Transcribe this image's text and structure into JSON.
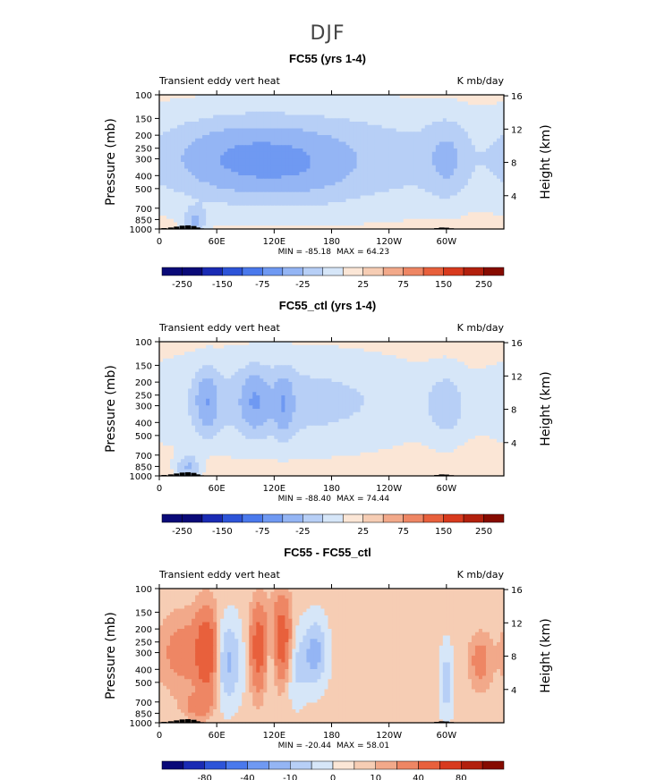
{
  "figure": {
    "supertitle": "DJF"
  },
  "chart_data": [
    {
      "type": "heatmap",
      "title": "FC55 (yrs 1-4)",
      "left_subtitle": "Transient eddy vert heat",
      "right_subtitle": "K mb/day",
      "xlabel": "",
      "ylabel": "Pressure (mb)",
      "ylabel_right": "Height (km)",
      "x_ticks": [
        "0",
        "60E",
        "120E",
        "180",
        "120W",
        "60W"
      ],
      "y_ticks": [
        "100",
        "150",
        "200",
        "250",
        "300",
        "400",
        "500",
        "700",
        "850",
        "1000"
      ],
      "y_ticks_right": [
        "16",
        "12",
        "8",
        "4"
      ],
      "xlim": [
        0,
        360
      ],
      "ylim": [
        1000,
        100
      ],
      "y_scale": "log",
      "min_label": "MIN = -85.18",
      "max_label": "MAX = 64.23",
      "min": -85.18,
      "max": 64.23,
      "colorbar_labels": [
        "-250",
        "-150",
        "-75",
        "-25",
        "25",
        "75",
        "150",
        "250"
      ],
      "levels": [
        -250,
        -200,
        -150,
        -100,
        -75,
        -50,
        -25,
        -10,
        10,
        25,
        50,
        75,
        100,
        150,
        200,
        250
      ],
      "background_value": 5,
      "features": [
        {
          "lon": 150,
          "plev": 300,
          "wlon": 160,
          "wlogp": 0.28,
          "value": -24
        },
        {
          "lon": 80,
          "plev": 300,
          "wlon": 40,
          "wlogp": 0.16,
          "value": -32
        },
        {
          "lon": 140,
          "plev": 320,
          "wlon": 40,
          "wlogp": 0.16,
          "value": -30
        },
        {
          "lon": 38,
          "plev": 860,
          "wlon": 8,
          "wlogp": 0.06,
          "value": -30
        },
        {
          "lon": 300,
          "plev": 300,
          "wlon": 14,
          "wlogp": 0.18,
          "value": -22
        }
      ]
    },
    {
      "type": "heatmap",
      "title": "FC55_ctl (yrs 1-4)",
      "left_subtitle": "Transient eddy vert heat",
      "right_subtitle": "K mb/day",
      "xlabel": "",
      "ylabel": "Pressure (mb)",
      "ylabel_right": "Height (km)",
      "x_ticks": [
        "0",
        "60E",
        "120E",
        "180",
        "120W",
        "60W"
      ],
      "y_ticks": [
        "100",
        "150",
        "200",
        "250",
        "300",
        "400",
        "500",
        "700",
        "850",
        "1000"
      ],
      "y_ticks_right": [
        "16",
        "12",
        "8",
        "4"
      ],
      "xlim": [
        0,
        360
      ],
      "ylim": [
        1000,
        100
      ],
      "y_scale": "log",
      "min_label": "MIN = -88.40",
      "max_label": "MAX = 74.44",
      "min": -88.4,
      "max": 74.44,
      "colorbar_labels": [
        "-250",
        "-150",
        "-75",
        "-25",
        "25",
        "75",
        "150",
        "250"
      ],
      "levels": [
        -250,
        -200,
        -150,
        -100,
        -75,
        -50,
        -25,
        -10,
        10,
        25,
        50,
        75,
        100,
        150,
        200,
        250
      ],
      "background_value": 5,
      "features": [
        {
          "lon": 130,
          "plev": 280,
          "wlon": 110,
          "wlogp": 0.26,
          "value": -20
        },
        {
          "lon": 50,
          "plev": 280,
          "wlon": 8,
          "wlogp": 0.14,
          "value": -40
        },
        {
          "lon": 100,
          "plev": 280,
          "wlon": 10,
          "wlogp": 0.14,
          "value": -40
        },
        {
          "lon": 130,
          "plev": 290,
          "wlon": 7,
          "wlogp": 0.14,
          "value": -38
        },
        {
          "lon": 30,
          "plev": 860,
          "wlon": 8,
          "wlogp": 0.06,
          "value": -30
        },
        {
          "lon": 300,
          "plev": 300,
          "wlon": 14,
          "wlogp": 0.18,
          "value": -18
        }
      ]
    },
    {
      "type": "heatmap",
      "title": "FC55 - FC55_ctl",
      "left_subtitle": "Transient eddy vert heat",
      "right_subtitle": "K mb/day",
      "xlabel": "",
      "ylabel": "Pressure (mb)",
      "ylabel_right": "Height (km)",
      "x_ticks": [
        "0",
        "60E",
        "120E",
        "180",
        "120W",
        "60W"
      ],
      "y_ticks": [
        "100",
        "150",
        "200",
        "250",
        "300",
        "400",
        "500",
        "700",
        "850",
        "1000"
      ],
      "y_ticks_right": [
        "16",
        "12",
        "8",
        "4"
      ],
      "xlim": [
        0,
        360
      ],
      "ylim": [
        1000,
        100
      ],
      "y_scale": "log",
      "min_label": "MIN = -20.44",
      "max_label": "MAX = 58.01",
      "min": -20.44,
      "max": 58.01,
      "colorbar_labels": [
        "-80",
        "-40",
        "-10",
        "0",
        "10",
        "40",
        "80"
      ],
      "levels": [
        -100,
        -80,
        -60,
        -40,
        -20,
        -10,
        -5,
        0,
        5,
        10,
        20,
        40,
        60,
        80,
        100
      ],
      "background_value": 2,
      "features": [
        {
          "lon": 50,
          "plev": 300,
          "wlon": 8,
          "wlogp": 0.22,
          "value": 30
        },
        {
          "lon": 105,
          "plev": 280,
          "wlon": 7,
          "wlogp": 0.22,
          "value": 28
        },
        {
          "lon": 128,
          "plev": 250,
          "wlon": 7,
          "wlogp": 0.22,
          "value": 30
        },
        {
          "lon": 25,
          "plev": 300,
          "wlon": 18,
          "wlogp": 0.2,
          "value": 12
        },
        {
          "lon": 335,
          "plev": 350,
          "wlon": 8,
          "wlogp": 0.14,
          "value": 12
        },
        {
          "lon": 70,
          "plev": 350,
          "wlon": 12,
          "wlogp": 0.22,
          "value": -14
        },
        {
          "lon": 115,
          "plev": 320,
          "wlon": 6,
          "wlogp": 0.2,
          "value": -12
        },
        {
          "lon": 163,
          "plev": 300,
          "wlon": 9,
          "wlogp": 0.18,
          "value": -14
        },
        {
          "lon": 140,
          "plev": 380,
          "wlon": 10,
          "wlogp": 0.2,
          "value": -9
        },
        {
          "lon": 300,
          "plev": 500,
          "wlon": 5,
          "wlogp": 0.2,
          "value": -10
        },
        {
          "lon": 40,
          "plev": 750,
          "wlon": 10,
          "wlogp": 0.06,
          "value": 12
        }
      ]
    }
  ],
  "colors": {
    "ramp_neg": [
      "#0a0a78",
      "#1a2bb4",
      "#2d54d8",
      "#4a79ec",
      "#6f99f2",
      "#94b5f4",
      "#b7cff6",
      "#d6e6f8"
    ],
    "ramp_pos": [
      "#fbe6d6",
      "#f6cdb4",
      "#f2a98a",
      "#ee8664",
      "#e8603c",
      "#d83a1e",
      "#b2200d",
      "#860b00"
    ],
    "topography": "#000000"
  }
}
